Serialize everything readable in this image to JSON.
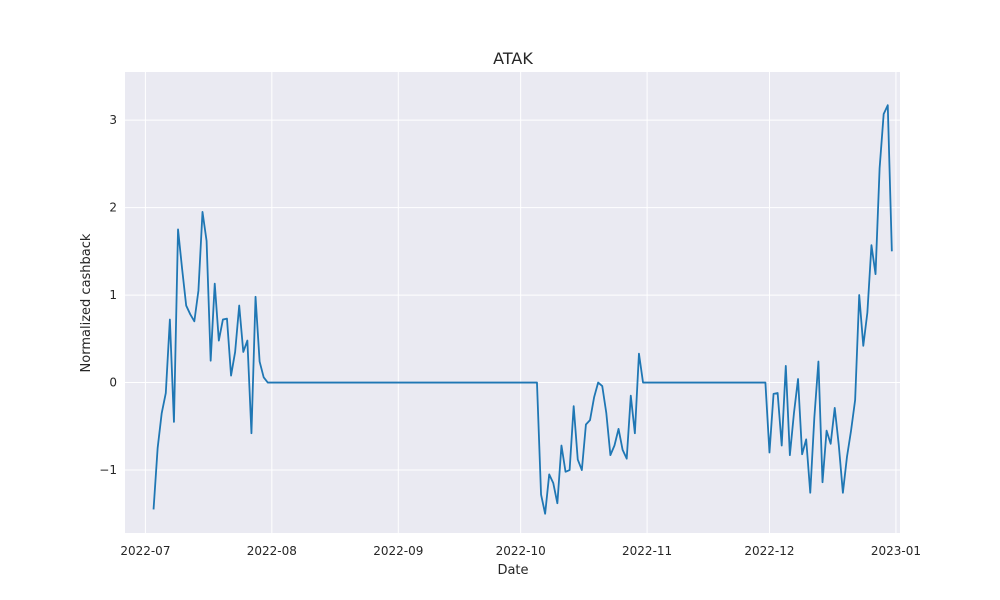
{
  "chart_data": {
    "type": "line",
    "title": "ATAK",
    "xlabel": "Date",
    "ylabel": "Normalized cashback",
    "x_ticks": [
      {
        "date": "2022-07-01",
        "label": "2022-07"
      },
      {
        "date": "2022-08-01",
        "label": "2022-08"
      },
      {
        "date": "2022-09-01",
        "label": "2022-09"
      },
      {
        "date": "2022-10-01",
        "label": "2022-10"
      },
      {
        "date": "2022-11-01",
        "label": "2022-11"
      },
      {
        "date": "2022-12-01",
        "label": "2022-12"
      },
      {
        "date": "2023-01-01",
        "label": "2023-01"
      }
    ],
    "y_ticks": [
      {
        "value": -1,
        "label": "−1"
      },
      {
        "value": 0,
        "label": "0"
      },
      {
        "value": 1,
        "label": "1"
      },
      {
        "value": 2,
        "label": "2"
      },
      {
        "value": 3,
        "label": "3"
      }
    ],
    "xlim": [
      "2022-06-26",
      "2023-01-02"
    ],
    "ylim": [
      -1.72,
      3.55
    ],
    "grid": true,
    "colors": {
      "background": "#eaeaf2",
      "grid": "#ffffff",
      "line": "#1f77b4"
    },
    "series": [
      {
        "name": "ATAK",
        "points": [
          [
            "2022-07-03",
            -1.45
          ],
          [
            "2022-07-04",
            -0.75
          ],
          [
            "2022-07-05",
            -0.35
          ],
          [
            "2022-07-06",
            -0.12
          ],
          [
            "2022-07-07",
            0.72
          ],
          [
            "2022-07-08",
            -0.45
          ],
          [
            "2022-07-09",
            1.75
          ],
          [
            "2022-07-10",
            1.3
          ],
          [
            "2022-07-11",
            0.88
          ],
          [
            "2022-07-12",
            0.78
          ],
          [
            "2022-07-13",
            0.7
          ],
          [
            "2022-07-14",
            1.05
          ],
          [
            "2022-07-15",
            1.95
          ],
          [
            "2022-07-16",
            1.62
          ],
          [
            "2022-07-17",
            0.25
          ],
          [
            "2022-07-18",
            1.13
          ],
          [
            "2022-07-19",
            0.48
          ],
          [
            "2022-07-20",
            0.72
          ],
          [
            "2022-07-21",
            0.73
          ],
          [
            "2022-07-22",
            0.08
          ],
          [
            "2022-07-23",
            0.35
          ],
          [
            "2022-07-24",
            0.88
          ],
          [
            "2022-07-25",
            0.35
          ],
          [
            "2022-07-26",
            0.48
          ],
          [
            "2022-07-27",
            -0.58
          ],
          [
            "2022-07-28",
            0.98
          ],
          [
            "2022-07-29",
            0.24
          ],
          [
            "2022-07-30",
            0.06
          ],
          [
            "2022-07-31",
            0.0
          ],
          [
            "2022-10-05",
            0.0
          ],
          [
            "2022-10-06",
            -1.28
          ],
          [
            "2022-10-07",
            -1.5
          ],
          [
            "2022-10-08",
            -1.05
          ],
          [
            "2022-10-09",
            -1.15
          ],
          [
            "2022-10-10",
            -1.38
          ],
          [
            "2022-10-11",
            -0.72
          ],
          [
            "2022-10-12",
            -1.02
          ],
          [
            "2022-10-13",
            -1.0
          ],
          [
            "2022-10-14",
            -0.27
          ],
          [
            "2022-10-15",
            -0.88
          ],
          [
            "2022-10-16",
            -1.0
          ],
          [
            "2022-10-17",
            -0.48
          ],
          [
            "2022-10-18",
            -0.43
          ],
          [
            "2022-10-19",
            -0.17
          ],
          [
            "2022-10-20",
            0.0
          ],
          [
            "2022-10-21",
            -0.04
          ],
          [
            "2022-10-22",
            -0.35
          ],
          [
            "2022-10-23",
            -0.83
          ],
          [
            "2022-10-24",
            -0.72
          ],
          [
            "2022-10-25",
            -0.53
          ],
          [
            "2022-10-26",
            -0.77
          ],
          [
            "2022-10-27",
            -0.87
          ],
          [
            "2022-10-28",
            -0.15
          ],
          [
            "2022-10-29",
            -0.58
          ],
          [
            "2022-10-30",
            0.33
          ],
          [
            "2022-10-31",
            0.0
          ],
          [
            "2022-11-30",
            0.0
          ],
          [
            "2022-12-01",
            -0.8
          ],
          [
            "2022-12-02",
            -0.13
          ],
          [
            "2022-12-03",
            -0.12
          ],
          [
            "2022-12-04",
            -0.72
          ],
          [
            "2022-12-05",
            0.19
          ],
          [
            "2022-12-06",
            -0.83
          ],
          [
            "2022-12-07",
            -0.35
          ],
          [
            "2022-12-08",
            0.04
          ],
          [
            "2022-12-09",
            -0.82
          ],
          [
            "2022-12-10",
            -0.65
          ],
          [
            "2022-12-11",
            -1.26
          ],
          [
            "2022-12-12",
            -0.4
          ],
          [
            "2022-12-13",
            0.24
          ],
          [
            "2022-12-14",
            -1.14
          ],
          [
            "2022-12-15",
            -0.55
          ],
          [
            "2022-12-16",
            -0.7
          ],
          [
            "2022-12-17",
            -0.29
          ],
          [
            "2022-12-18",
            -0.72
          ],
          [
            "2022-12-19",
            -1.26
          ],
          [
            "2022-12-20",
            -0.85
          ],
          [
            "2022-12-21",
            -0.55
          ],
          [
            "2022-12-22",
            -0.2
          ],
          [
            "2022-12-23",
            1.0
          ],
          [
            "2022-12-24",
            0.42
          ],
          [
            "2022-12-25",
            0.8
          ],
          [
            "2022-12-26",
            1.57
          ],
          [
            "2022-12-27",
            1.24
          ],
          [
            "2022-12-28",
            2.45
          ],
          [
            "2022-12-29",
            3.07
          ],
          [
            "2022-12-30",
            3.17
          ],
          [
            "2022-12-31",
            1.5
          ]
        ]
      }
    ]
  }
}
